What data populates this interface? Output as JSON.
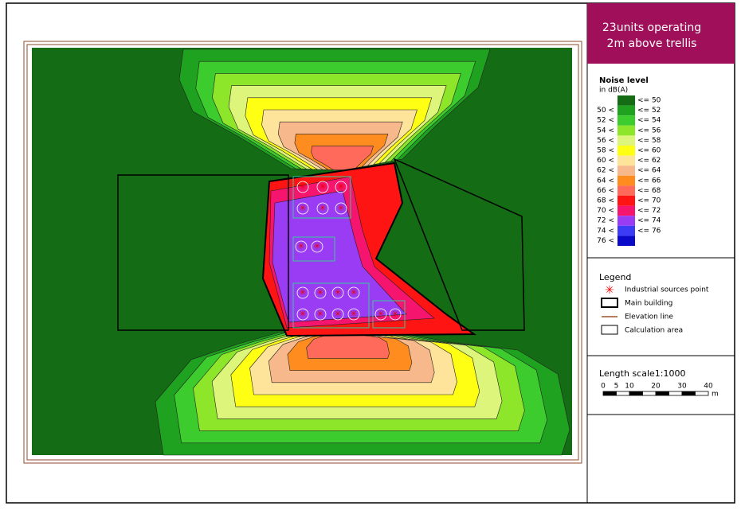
{
  "title": {
    "line1": "23units operating",
    "line2": "2m above trellis"
  },
  "noise_legend": {
    "title": "Noise level",
    "unit": "in dB(A)",
    "rows": [
      {
        "high": "<= 50",
        "color": "#146c14"
      },
      {
        "low": "50 <",
        "high": "<= 52",
        "color": "#1fa21f"
      },
      {
        "low": "52 <",
        "high": "<= 54",
        "color": "#3ccc2e"
      },
      {
        "low": "54 <",
        "high": "<= 56",
        "color": "#8ee62a"
      },
      {
        "low": "56 <",
        "high": "<= 58",
        "color": "#dcf57a"
      },
      {
        "low": "58 <",
        "high": "<= 60",
        "color": "#ffff14"
      },
      {
        "low": "60 <",
        "high": "<= 62",
        "color": "#fde49a"
      },
      {
        "low": "62 <",
        "high": "<= 64",
        "color": "#f7b98c"
      },
      {
        "low": "64 <",
        "high": "<= 66",
        "color": "#ff8c1e"
      },
      {
        "low": "66 <",
        "high": "<= 68",
        "color": "#ff6a5a"
      },
      {
        "low": "68 <",
        "high": "<= 70",
        "color": "#ff1414"
      },
      {
        "low": "70 <",
        "high": "<= 72",
        "color": "#f5146e"
      },
      {
        "low": "72 <",
        "high": "<= 74",
        "color": "#9b3cf5"
      },
      {
        "low": "74 <",
        "high": "<= 76",
        "color": "#3c3cf5"
      },
      {
        "low": "76 <",
        "color": "#0a0ac8"
      }
    ]
  },
  "legend": {
    "title": "Legend",
    "items": [
      "Industrial sources point",
      "Main building",
      "Elevation line",
      "Calculation area"
    ]
  },
  "scale": {
    "label": "Length scale1:1000",
    "ticks": [
      "0",
      "5",
      "10",
      "20",
      "30",
      "40"
    ],
    "unit": "m"
  }
}
